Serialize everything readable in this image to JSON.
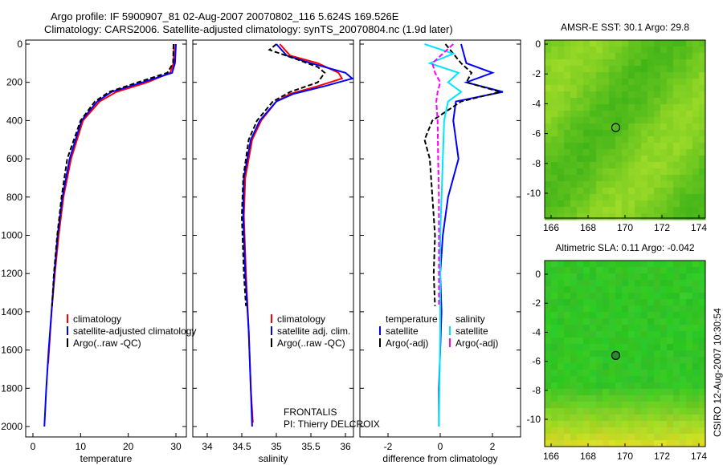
{
  "title_line1": "Argo profile: IF 5900907_81 02-Aug-2007 20070802_116 5.624S 169.526E",
  "title_line2": "Climatology: CARS2006. Satellite-adjusted climatology: synTS_20070804.nc (1.9d later)",
  "footer_text": "CSIRO 12-Aug-2007 10:30:54",
  "credit": {
    "line1": "FRONTALIS",
    "line2": "PI: Thierry DELCROIX"
  },
  "colors": {
    "climatology": "#ff0000",
    "satellite": "#0000ff",
    "argo": "#000000",
    "sal_satellite": "#00e5ff",
    "sal_argo": "#ff00ff"
  },
  "chart_data": [
    {
      "type": "line",
      "xlabel": "temperature",
      "ylabel": "depth",
      "xlim": [
        -2,
        32
      ],
      "ylim": [
        2050,
        0
      ],
      "xticks": [
        "0",
        "10",
        "20",
        "30"
      ],
      "yticks": [
        "0",
        "200",
        "400",
        "600",
        "800",
        "1000",
        "1200",
        "1400",
        "1600",
        "1800",
        "2000"
      ],
      "legend": [
        "climatology",
        "satellite-adjusted climatology",
        "Argo(..raw -QC)"
      ],
      "series": [
        {
          "name": "climatology",
          "color": "#ff0000",
          "depth": [
            0,
            100,
            150,
            200,
            250,
            300,
            400,
            600,
            800,
            1000,
            1200,
            1400,
            1670
          ],
          "values": [
            29.6,
            29.5,
            28.8,
            24,
            17.5,
            14,
            10.5,
            8,
            6.4,
            5.4,
            4.6,
            3.9,
            3.2
          ]
        },
        {
          "name": "satellite-adjusted climatology",
          "color": "#0000ff",
          "depth": [
            0,
            100,
            150,
            200,
            250,
            300,
            400,
            600,
            800,
            1000,
            1200,
            1400,
            1600,
            1800,
            2000
          ],
          "values": [
            30,
            29.8,
            29.2,
            23,
            16.5,
            13.5,
            10.2,
            7.7,
            6.2,
            5.2,
            4.5,
            3.9,
            3.3,
            2.8,
            2.4
          ]
        },
        {
          "name": "Argo(..raw -QC)",
          "color": "#000000",
          "depth": [
            0,
            100,
            150,
            200,
            250,
            300,
            400,
            600,
            800,
            1000,
            1200,
            1370
          ],
          "values": [
            29.5,
            29.4,
            28.2,
            22,
            16,
            13,
            10,
            7.2,
            6,
            5.1,
            4.4,
            4
          ]
        }
      ]
    },
    {
      "type": "line",
      "xlabel": "salinity",
      "xlim": [
        33.8,
        36.1
      ],
      "ylim": [
        2050,
        0
      ],
      "xticks": [
        "34",
        "34.5",
        "35",
        "35.5",
        "36"
      ],
      "legend": [
        "climatology",
        "satellite adj. clim.",
        "Argo(..raw -QC)"
      ],
      "series": [
        {
          "name": "climatology",
          "color": "#ff0000",
          "depth": [
            0,
            60,
            100,
            150,
            180,
            220,
            260,
            300,
            400,
            500,
            700,
            900,
            1200,
            1500,
            1800,
            1980
          ],
          "values": [
            35.05,
            35.2,
            35.6,
            35.9,
            35.95,
            35.6,
            35.2,
            35.0,
            34.78,
            34.65,
            34.55,
            34.53,
            34.56,
            34.6,
            34.63,
            34.66
          ]
        },
        {
          "name": "satellite adj. clim.",
          "color": "#0000ff",
          "depth": [
            0,
            60,
            100,
            150,
            180,
            220,
            260,
            300,
            400,
            500,
            700,
            900,
            1200,
            1500,
            1800,
            2000
          ],
          "values": [
            35.0,
            35.15,
            35.5,
            36.0,
            36.1,
            35.7,
            35.25,
            35.0,
            34.76,
            34.63,
            34.53,
            34.52,
            34.55,
            34.6,
            34.63,
            34.65
          ]
        },
        {
          "name": "Argo(..raw -QC)",
          "color": "#000000",
          "depth": [
            0,
            30,
            80,
            120,
            150,
            200,
            250,
            300,
            400,
            500,
            700,
            900,
            1200,
            1370
          ],
          "values": [
            35.0,
            34.9,
            35.3,
            35.6,
            35.7,
            35.6,
            35.2,
            34.95,
            34.72,
            34.6,
            34.52,
            34.5,
            34.53,
            34.56
          ]
        }
      ]
    },
    {
      "type": "line",
      "xlabel": "difference from climatology",
      "xlim": [
        -3.1,
        3.1
      ],
      "ylim": [
        2050,
        0
      ],
      "xticks": [
        "-2",
        "0",
        "2"
      ],
      "legend": [
        "temperature",
        "satellite",
        "Argo(-adj)",
        "salinity",
        "satellite",
        "Argo(-adj)"
      ],
      "series": [
        {
          "name": "temperature satellite",
          "color": "#0000ff",
          "depth": [
            0,
            100,
            150,
            200,
            250,
            300,
            400,
            500,
            600,
            800,
            1000,
            1200,
            1400,
            1600,
            1800,
            2000
          ],
          "values": [
            0.8,
            1.0,
            2.0,
            1.0,
            2.4,
            0.6,
            0.5,
            0.6,
            0.7,
            0.3,
            0.1,
            0.0,
            0.05,
            0.0,
            -0.05,
            -0.05
          ]
        },
        {
          "name": "temperature Argo(-adj)",
          "color": "#000000",
          "depth": [
            0,
            100,
            150,
            200,
            250,
            300,
            400,
            500,
            600,
            800,
            1000,
            1200,
            1370
          ],
          "values": [
            0.2,
            0.8,
            1.2,
            1.0,
            2.3,
            0.8,
            -0.3,
            -0.6,
            -0.4,
            -0.3,
            -0.2,
            -0.25,
            -0.2
          ]
        },
        {
          "name": "salinity satellite",
          "color": "#00e5ff",
          "depth": [
            0,
            50,
            100,
            150,
            200,
            250,
            300,
            400,
            600,
            800,
            1000,
            1500,
            2000
          ],
          "values": [
            -0.6,
            0.5,
            -0.4,
            0.7,
            0.3,
            0.8,
            0.3,
            0.15,
            0.1,
            0.05,
            0.0,
            0.0,
            -0.05
          ]
        },
        {
          "name": "salinity Argo(-adj)",
          "color": "#ff00ff",
          "depth": [
            0,
            50,
            100,
            150,
            200,
            250,
            300,
            400,
            600,
            800,
            1000,
            1370
          ],
          "values": [
            0.5,
            0.1,
            -0.3,
            -0.2,
            0.0,
            -0.1,
            -0.15,
            -0.1,
            -0.08,
            -0.05,
            -0.05,
            -0.05
          ]
        }
      ]
    },
    {
      "type": "heatmap",
      "title": "AMSR-E SST: 30.1  Argo: 29.8",
      "xlim": [
        164.5,
        174.8
      ],
      "ylim": [
        -11.5,
        0.5
      ],
      "xticks": [
        "166",
        "168",
        "170",
        "172",
        "174"
      ],
      "yticks": [
        "0",
        "-2",
        "-4",
        "-6",
        "-8",
        "-10"
      ],
      "marker": {
        "lon": 169.5,
        "lat": -5.6
      }
    },
    {
      "type": "heatmap",
      "title": "Altimetric SLA: 0.11  Argo: -0.042",
      "xlim": [
        164.5,
        174.8
      ],
      "ylim": [
        -11.5,
        0.5
      ],
      "xticks": [
        "166",
        "168",
        "170",
        "172",
        "174"
      ],
      "yticks": [
        "0",
        "-2",
        "-4",
        "-6",
        "-8",
        "-10"
      ],
      "marker": {
        "lon": 169.5,
        "lat": -5.6
      }
    }
  ]
}
